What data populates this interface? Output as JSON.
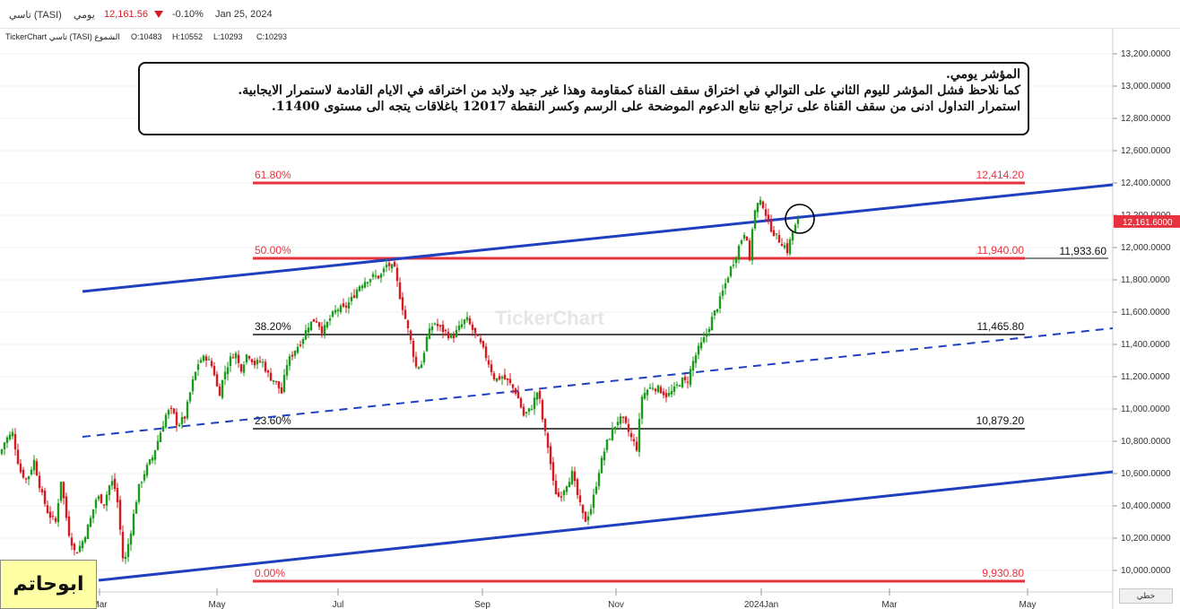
{
  "header": {
    "symbol": "تاسي (TASI)",
    "period": "يومي",
    "price": "12,161.56",
    "change_icon": "triangle-down-icon",
    "change": "-0.10%",
    "date": "Jan 25, 2024"
  },
  "ohlc_bar": {
    "title": "TickerChart تاسي (TASI) الشموع",
    "open": "O:10483",
    "high": "H:10552",
    "low": "L:10293",
    "close": "C:10293"
  },
  "watermark": "TickerChart",
  "annotation": {
    "lines": [
      "المؤشر يومي.",
      "كما نلاحظ فشل المؤشر لليوم الثاني على التوالي في اختراق سقف القناة كمقاومة وهذا غير جيد ولابد من اختراقه في الايام القادمة لاستمرار الايجابية.",
      "استمرار التداول ادنى من سقف القناة على تراجع نتابع الدعوم الموضحة على الرسم وكسر النقطة 12017 باغلاقات يتجه الى مستوى 11400."
    ]
  },
  "signature": "ابوحاتم",
  "line_button": "خطي",
  "colors": {
    "up": "#1c9a1c",
    "down": "#d71921",
    "channel": "#1f3fbf",
    "fib_red": "#e8313f",
    "fib_black": "#111111",
    "price_tag": "#e8313f"
  },
  "chart_data": {
    "type": "candlestick",
    "title": "",
    "xlabel": "",
    "ylabel": "",
    "ylim": [
      9860,
      13300
    ],
    "y_ticks": [
      "13,200.0000",
      "13,000.0000",
      "12,800.0000",
      "12,600.0000",
      "12,400.0000",
      "12,200.0000",
      "12,000.0000",
      "11,800.0000",
      "11,600.0000",
      "11,400.0000",
      "11,200.0000",
      "11,000.0000",
      "10,800.0000",
      "10,600.0000",
      "10,400.0000",
      "10,200.0000",
      "10,000.0000"
    ],
    "x_ticks": [
      "Mar",
      "May",
      "Jul",
      "Sep",
      "Nov",
      "2024Jan",
      "Mar",
      "May"
    ],
    "last_price_tag": "12,161.6000",
    "level_tag": "11,933.60",
    "fibonacci": [
      {
        "pct": "61.80%",
        "value": "12,414.20",
        "color": "red"
      },
      {
        "pct": "50.00%",
        "value": "11,940.00",
        "color": "red"
      },
      {
        "pct": "38.20%",
        "value": "11,465.80",
        "color": "black"
      },
      {
        "pct": "23.60%",
        "value": "10,879.20",
        "color": "black"
      },
      {
        "pct": "0.00%",
        "value": "9,930.80",
        "color": "red"
      }
    ],
    "close_anchors": [
      [
        0,
        10720
      ],
      [
        6,
        10810
      ],
      [
        14,
        10850
      ],
      [
        22,
        10620
      ],
      [
        30,
        10560
      ],
      [
        38,
        10680
      ],
      [
        46,
        10480
      ],
      [
        54,
        10350
      ],
      [
        62,
        10300
      ],
      [
        68,
        10560
      ],
      [
        76,
        10250
      ],
      [
        84,
        10100
      ],
      [
        92,
        10180
      ],
      [
        100,
        10300
      ],
      [
        108,
        10460
      ],
      [
        116,
        10420
      ],
      [
        124,
        10560
      ],
      [
        130,
        10480
      ],
      [
        138,
        10020
      ],
      [
        146,
        10250
      ],
      [
        154,
        10500
      ],
      [
        162,
        10620
      ],
      [
        170,
        10700
      ],
      [
        178,
        10840
      ],
      [
        186,
        10980
      ],
      [
        192,
        10990
      ],
      [
        198,
        10900
      ],
      [
        206,
        10950
      ],
      [
        214,
        11150
      ],
      [
        222,
        11300
      ],
      [
        230,
        11320
      ],
      [
        238,
        11250
      ],
      [
        244,
        11080
      ],
      [
        250,
        11220
      ],
      [
        256,
        11300
      ],
      [
        262,
        11360
      ],
      [
        268,
        11240
      ],
      [
        276,
        11350
      ],
      [
        284,
        11280
      ],
      [
        292,
        11300
      ],
      [
        300,
        11200
      ],
      [
        306,
        11180
      ],
      [
        314,
        11100
      ],
      [
        320,
        11280
      ],
      [
        328,
        11360
      ],
      [
        336,
        11420
      ],
      [
        344,
        11520
      ],
      [
        352,
        11560
      ],
      [
        360,
        11480
      ],
      [
        368,
        11560
      ],
      [
        376,
        11620
      ],
      [
        384,
        11620
      ],
      [
        392,
        11680
      ],
      [
        400,
        11760
      ],
      [
        408,
        11800
      ],
      [
        416,
        11820
      ],
      [
        424,
        11820
      ],
      [
        432,
        11900
      ],
      [
        440,
        11860
      ],
      [
        446,
        11700
      ],
      [
        452,
        11560
      ],
      [
        458,
        11420
      ],
      [
        464,
        11260
      ],
      [
        470,
        11280
      ],
      [
        476,
        11440
      ],
      [
        484,
        11540
      ],
      [
        490,
        11500
      ],
      [
        496,
        11480
      ],
      [
        504,
        11440
      ],
      [
        512,
        11500
      ],
      [
        520,
        11560
      ],
      [
        528,
        11480
      ],
      [
        536,
        11400
      ],
      [
        544,
        11300
      ],
      [
        552,
        11180
      ],
      [
        560,
        11200
      ],
      [
        568,
        11160
      ],
      [
        576,
        11100
      ],
      [
        584,
        10960
      ],
      [
        592,
        11000
      ],
      [
        600,
        11120
      ],
      [
        606,
        10900
      ],
      [
        612,
        10740
      ],
      [
        618,
        10500
      ],
      [
        624,
        10450
      ],
      [
        630,
        10520
      ],
      [
        638,
        10600
      ],
      [
        646,
        10420
      ],
      [
        652,
        10300
      ],
      [
        660,
        10400
      ],
      [
        668,
        10620
      ],
      [
        676,
        10780
      ],
      [
        684,
        10880
      ],
      [
        690,
        10940
      ],
      [
        696,
        10920
      ],
      [
        704,
        10820
      ],
      [
        710,
        10760
      ],
      [
        716,
        11080
      ],
      [
        722,
        11120
      ],
      [
        728,
        11140
      ],
      [
        736,
        11120
      ],
      [
        744,
        11080
      ],
      [
        752,
        11120
      ],
      [
        760,
        11180
      ],
      [
        766,
        11160
      ],
      [
        772,
        11280
      ],
      [
        778,
        11360
      ],
      [
        786,
        11440
      ],
      [
        794,
        11560
      ],
      [
        802,
        11660
      ],
      [
        808,
        11760
      ],
      [
        814,
        11860
      ],
      [
        820,
        11940
      ],
      [
        826,
        12040
      ],
      [
        832,
        12120
      ],
      [
        836,
        11900
      ],
      [
        840,
        12200
      ],
      [
        846,
        12280
      ],
      [
        852,
        12260
      ],
      [
        856,
        12160
      ],
      [
        862,
        12100
      ],
      [
        868,
        12050
      ],
      [
        874,
        12020
      ],
      [
        878,
        11980
      ],
      [
        884,
        12100
      ],
      [
        890,
        12162
      ]
    ],
    "candle_x_range": [
      0,
      890
    ],
    "candle_step": 3
  }
}
